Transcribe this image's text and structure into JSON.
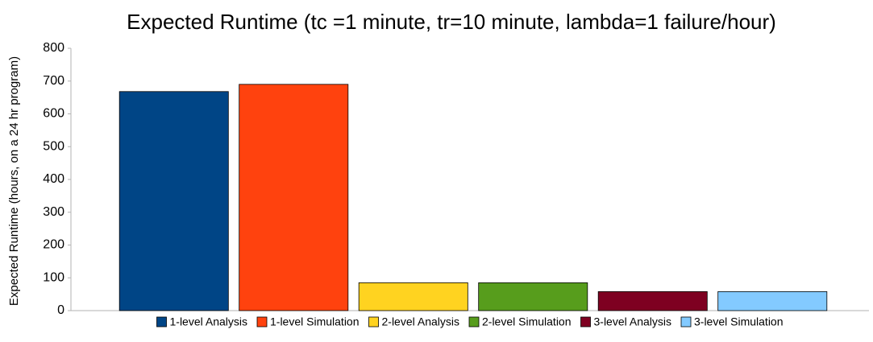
{
  "chart_data": {
    "type": "bar",
    "title": "Expected Runtime (tc =1 minute, tr=10 minute, lambda=1 failure/hour)",
    "y_label": "Expected Runtime (hours, on a 24 hr program)",
    "categories": [
      null
    ],
    "series": [
      {
        "name": "1-level Analysis",
        "color": "#004586",
        "values": [
          668
        ]
      },
      {
        "name": "1-level Simulation",
        "color": "#ff420e",
        "values": [
          690
        ]
      },
      {
        "name": "2-level Analysis",
        "color": "#ffd320",
        "values": [
          85
        ]
      },
      {
        "name": "2-level Simulation",
        "color": "#579d1c",
        "values": [
          85
        ]
      },
      {
        "name": "3-level Analysis",
        "color": "#7e0021",
        "values": [
          58
        ]
      },
      {
        "name": "3-level Simulation",
        "color": "#83caff",
        "values": [
          58
        ]
      }
    ],
    "ylim": [
      0,
      800
    ],
    "yticks": [
      0,
      100,
      200,
      300,
      400,
      500,
      600,
      700,
      800
    ],
    "grid": false,
    "legend": "bottom"
  }
}
